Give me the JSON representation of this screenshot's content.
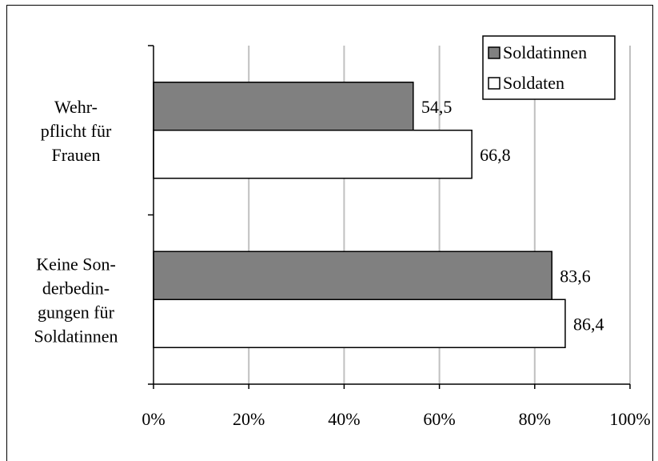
{
  "chart_data": {
    "type": "bar",
    "orientation": "horizontal",
    "categories": [
      [
        "Wehr-",
        "pflicht für",
        "Frauen"
      ],
      [
        "Keine Son-",
        "derbedin-",
        "gungen für",
        "Soldatinnen"
      ]
    ],
    "series": [
      {
        "name": "Soldatinnen",
        "values": [
          54.5,
          83.6
        ],
        "labels": [
          "54,5",
          "83,6"
        ],
        "color": "#808080"
      },
      {
        "name": "Soldaten",
        "values": [
          66.8,
          86.4
        ],
        "labels": [
          "66,8",
          "86,4"
        ],
        "color": "#ffffff"
      }
    ],
    "xticks": [
      "0%",
      "20%",
      "40%",
      "60%",
      "80%",
      "100%"
    ],
    "xlim": [
      0,
      100
    ],
    "grid": true,
    "legend": "top-right"
  }
}
